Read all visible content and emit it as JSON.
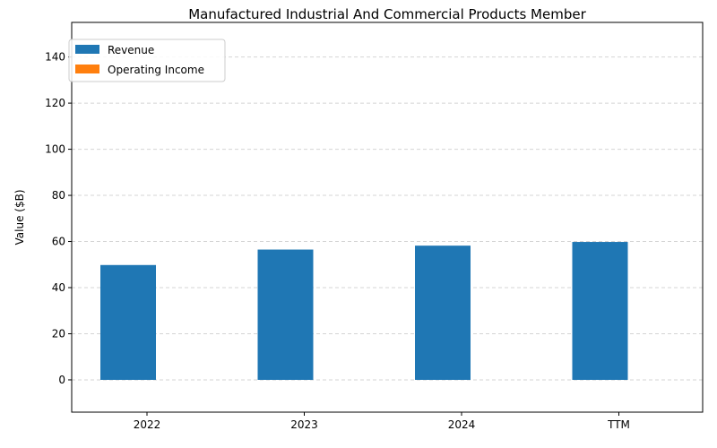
{
  "chart_data": {
    "type": "bar",
    "title": "Manufactured Industrial And Commercial Products Member",
    "xlabel": "",
    "ylabel": "Value ($B)",
    "categories": [
      "2022",
      "2023",
      "2024",
      "TTM"
    ],
    "series": [
      {
        "name": "Revenue",
        "color": "#1f77b4",
        "values": [
          49.8,
          56.5,
          58.2,
          59.8
        ]
      },
      {
        "name": "Operating Income",
        "color": "#ff7f0e",
        "values": [
          0,
          0,
          0,
          0
        ]
      }
    ],
    "ylim": [
      -14,
      155
    ],
    "yticks": [
      0,
      20,
      40,
      60,
      80,
      100,
      120,
      140
    ],
    "grid": "horizontal-dashed",
    "legend_position": "top-left"
  }
}
